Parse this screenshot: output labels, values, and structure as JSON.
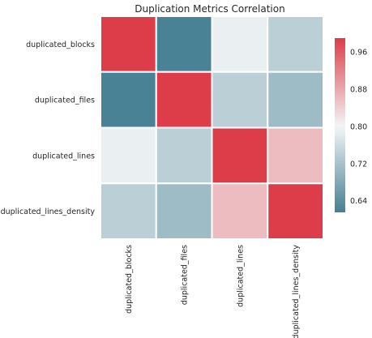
{
  "chart_data": {
    "type": "heatmap",
    "title": "Duplication Metrics Correlation",
    "xlabel": "",
    "ylabel": "",
    "x_categories": [
      "duplicated_blocks",
      "duplicated_files",
      "duplicated_lines",
      "duplicated_lines_density"
    ],
    "y_categories": [
      "duplicated_blocks",
      "duplicated_files",
      "duplicated_lines",
      "duplicated_lines_density"
    ],
    "values": [
      [
        1.0,
        0.62,
        0.79,
        0.74
      ],
      [
        0.62,
        1.0,
        0.74,
        0.71
      ],
      [
        0.79,
        0.74,
        1.0,
        0.86
      ],
      [
        0.74,
        0.71,
        0.86,
        1.0
      ]
    ],
    "colorbar": {
      "range": [
        0.615,
        0.99
      ],
      "center": 0.8,
      "ticks": [
        "0.64",
        "0.72",
        "0.80",
        "0.88",
        "0.96"
      ],
      "tick_values": [
        0.64,
        0.72,
        0.8,
        0.88,
        0.96
      ],
      "placement": "right"
    },
    "colors": {
      "low": "#457f92",
      "mid": "#f3f6f8",
      "high": "#dc3d49",
      "cell_border": "#ffffff"
    },
    "grid": false
  }
}
